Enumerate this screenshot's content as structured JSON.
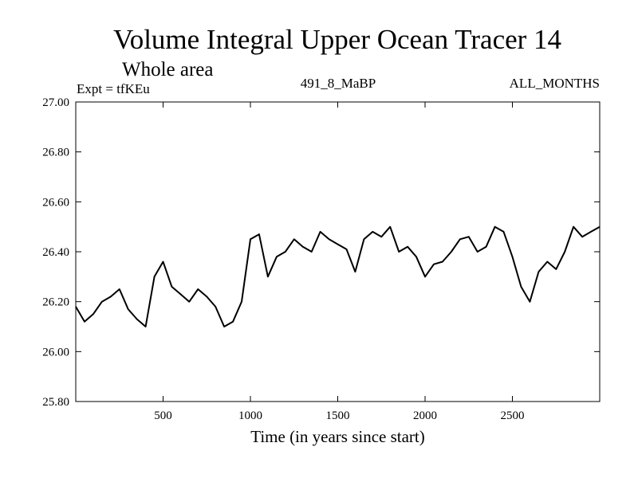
{
  "chart_data": {
    "type": "line",
    "title": "Volume Integral Upper Ocean Tracer 14",
    "subtitle": "Whole area",
    "experiment_label": "Expt = tfKEu",
    "run_label": "491_8_MaBP",
    "months_label": "ALL_MONTHS",
    "xlabel": "Time (in years since start)",
    "ylabel": "",
    "xlim": [
      0,
      3000
    ],
    "ylim": [
      25.8,
      27.0
    ],
    "xticks": [
      500,
      1000,
      1500,
      2000,
      2500
    ],
    "yticks": [
      "25.80",
      "26.00",
      "26.20",
      "26.40",
      "26.60",
      "26.80",
      "27.00"
    ],
    "grid": false,
    "series": [
      {
        "x": [
          0,
          50,
          100,
          150,
          200,
          250,
          300,
          350,
          400,
          450,
          500,
          550,
          600,
          650,
          700,
          750,
          800,
          850,
          900,
          950,
          1000,
          1050,
          1100,
          1150,
          1200,
          1250,
          1300,
          1350,
          1400,
          1450,
          1500,
          1550,
          1600,
          1650,
          1700,
          1750,
          1800,
          1850,
          1900,
          1950,
          2000,
          2050,
          2100,
          2150,
          2200,
          2250,
          2300,
          2350,
          2400,
          2450,
          2500,
          2550,
          2600,
          2650,
          2700,
          2750,
          2800,
          2850,
          2900,
          2950,
          3000
        ],
        "y": [
          26.18,
          26.12,
          26.15,
          26.2,
          26.22,
          26.25,
          26.17,
          26.13,
          26.1,
          26.3,
          26.36,
          26.26,
          26.23,
          26.2,
          26.25,
          26.22,
          26.18,
          26.1,
          26.12,
          26.2,
          26.45,
          26.47,
          26.3,
          26.38,
          26.4,
          26.45,
          26.42,
          26.4,
          26.48,
          26.45,
          26.43,
          26.41,
          26.32,
          26.45,
          26.48,
          26.46,
          26.5,
          26.4,
          26.42,
          26.38,
          26.3,
          26.35,
          26.36,
          26.4,
          26.45,
          26.46,
          26.4,
          26.42,
          26.5,
          26.48,
          26.38,
          26.26,
          26.2,
          26.32,
          26.36,
          26.33,
          26.4,
          26.5,
          26.46,
          26.48,
          26.5
        ]
      }
    ]
  }
}
